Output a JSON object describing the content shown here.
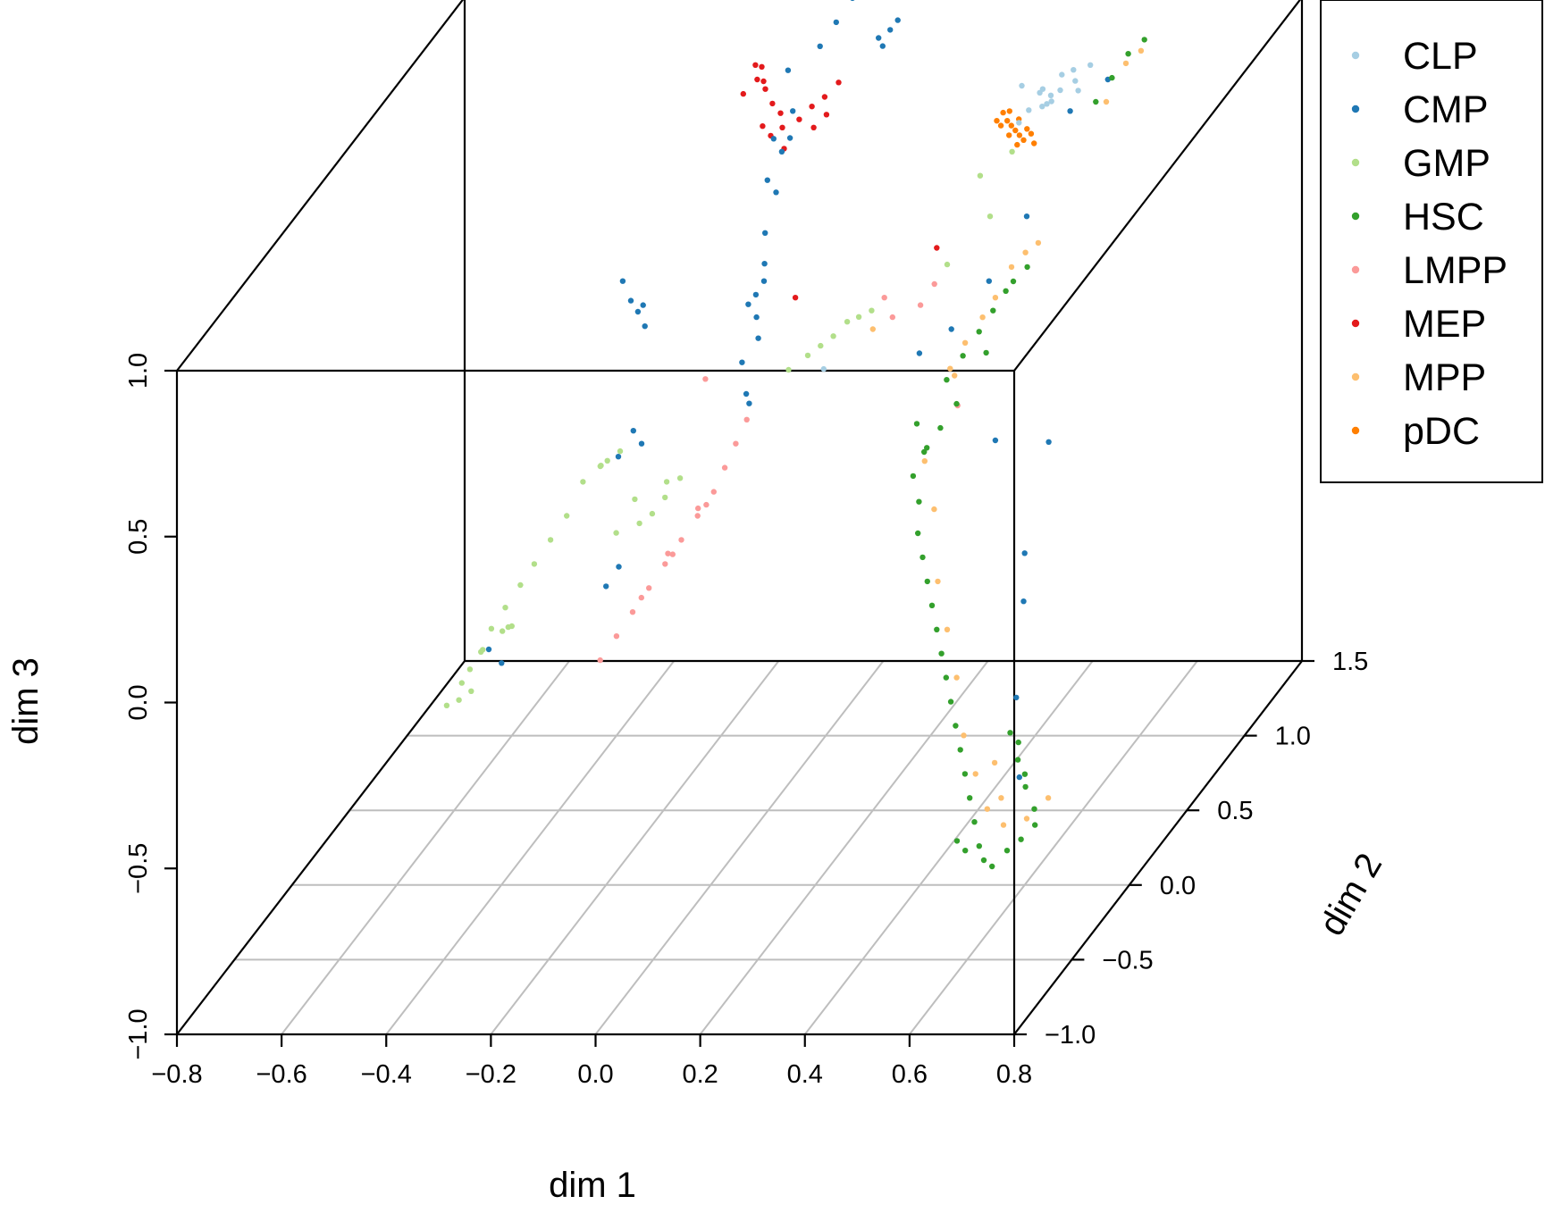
{
  "chart_data": {
    "type": "scatter",
    "title": "",
    "xlabel": "dim 1",
    "ylabel": "dim 2",
    "zlabel": "dim 3",
    "xlim": [
      -0.8,
      0.8
    ],
    "ylim": [
      -1.0,
      1.5
    ],
    "zlim": [
      -1.0,
      1.0
    ],
    "x_ticks": [
      "−0.8",
      "−0.6",
      "−0.4",
      "−0.2",
      "0.0",
      "0.2",
      "0.4",
      "0.6",
      "0.8"
    ],
    "y_ticks": [
      "−1.0",
      "−0.5",
      "0.0",
      "0.5",
      "1.0",
      "1.5"
    ],
    "z_ticks": [
      "−1.0",
      "−0.5",
      "0.0",
      "0.5",
      "1.0"
    ],
    "legend_position": "top-right",
    "series": [
      {
        "name": "CLP",
        "color": "#a6cee3",
        "points": [
          [
            0.43,
            0.93,
            0.98
          ],
          [
            0.45,
            0.91,
            0.97
          ],
          [
            0.47,
            0.9,
            0.99
          ],
          [
            0.44,
            0.88,
            0.95
          ],
          [
            0.49,
            0.94,
            1.0
          ],
          [
            0.42,
            0.95,
            0.96
          ],
          [
            0.41,
            0.9,
            0.93
          ],
          [
            0.46,
            0.96,
            1.01
          ],
          [
            0.5,
            0.92,
            0.98
          ],
          [
            0.48,
            0.97,
            1.02
          ],
          [
            0.4,
            0.86,
            0.91
          ],
          [
            0.44,
            0.92,
            0.94
          ],
          [
            0.46,
            0.87,
            0.97
          ],
          [
            0.39,
            0.93,
            0.99
          ],
          [
            0.51,
            0.98,
            1.03
          ],
          [
            0.15,
            0.3,
            0.42
          ]
        ]
      },
      {
        "name": "CMP",
        "color": "#1f78b4",
        "points": [
          [
            -0.05,
            0.9,
            1.05
          ],
          [
            0.0,
            0.95,
            1.1
          ],
          [
            0.02,
            1.0,
            1.15
          ],
          [
            0.04,
            1.05,
            1.2
          ],
          [
            -0.03,
            0.85,
            0.95
          ],
          [
            -0.04,
            0.8,
            0.85
          ],
          [
            -0.04,
            0.75,
            0.75
          ],
          [
            -0.05,
            0.7,
            0.65
          ],
          [
            -0.04,
            0.65,
            0.58
          ],
          [
            -0.03,
            0.6,
            0.55
          ],
          [
            -0.05,
            0.62,
            0.5
          ],
          [
            -0.04,
            0.58,
            0.45
          ],
          [
            -0.03,
            0.55,
            0.4
          ],
          [
            -0.05,
            0.5,
            0.35
          ],
          [
            -0.05,
            0.72,
            0.8
          ],
          [
            -0.02,
            0.78,
            0.9
          ],
          [
            -0.06,
            0.82,
            0.88
          ],
          [
            -0.06,
            0.6,
            0.48
          ],
          [
            0.09,
            1.05,
            1.08
          ],
          [
            0.11,
            1.06,
            1.1
          ],
          [
            0.12,
            1.08,
            1.12
          ],
          [
            0.1,
            1.04,
            1.06
          ],
          [
            -0.3,
            0.6,
            0.55
          ],
          [
            -0.28,
            0.58,
            0.5
          ],
          [
            -0.26,
            0.55,
            0.48
          ],
          [
            -0.24,
            0.52,
            0.45
          ],
          [
            -0.25,
            0.55,
            0.5
          ],
          [
            -0.22,
            0.4,
            0.15
          ],
          [
            -0.24,
            0.42,
            0.18
          ],
          [
            -0.26,
            0.38,
            0.12
          ],
          [
            -0.02,
            0.4,
            0.3
          ],
          [
            -0.01,
            0.38,
            0.28
          ],
          [
            -0.2,
            0.0,
            -0.1
          ],
          [
            -0.18,
            0.02,
            -0.05
          ],
          [
            -0.38,
            -0.2,
            -0.2
          ],
          [
            -0.36,
            -0.18,
            -0.25
          ],
          [
            0.5,
            0.85,
            0.95
          ],
          [
            0.55,
            0.95,
            1.0
          ],
          [
            0.45,
            0.7,
            0.7
          ],
          [
            0.4,
            0.6,
            0.55
          ],
          [
            0.35,
            0.5,
            0.45
          ],
          [
            0.3,
            0.45,
            0.4
          ],
          [
            0.6,
            0.0,
            0.0
          ],
          [
            0.65,
            -0.3,
            -0.3
          ],
          [
            0.62,
            -0.1,
            -0.1
          ],
          [
            0.7,
            -0.5,
            -0.45
          ],
          [
            0.58,
            0.3,
            0.2
          ],
          [
            0.5,
            0.2,
            0.25
          ]
        ]
      },
      {
        "name": "GMP",
        "color": "#b2df8a",
        "points": [
          [
            -0.25,
            0.35,
            0.15
          ],
          [
            -0.27,
            0.33,
            0.13
          ],
          [
            -0.29,
            0.36,
            0.1
          ],
          [
            -0.31,
            0.3,
            0.08
          ],
          [
            -0.28,
            0.32,
            0.12
          ],
          [
            -0.33,
            0.25,
            0.0
          ],
          [
            -0.35,
            0.2,
            -0.05
          ],
          [
            -0.37,
            0.15,
            -0.1
          ],
          [
            -0.39,
            0.12,
            -0.15
          ],
          [
            -0.41,
            0.08,
            -0.2
          ],
          [
            -0.43,
            0.05,
            -0.25
          ],
          [
            -0.44,
            0.02,
            -0.3
          ],
          [
            -0.46,
            0.0,
            -0.35
          ],
          [
            -0.45,
            0.05,
            -0.32
          ],
          [
            -0.42,
            0.1,
            -0.28
          ],
          [
            -0.4,
            0.06,
            -0.25
          ],
          [
            -0.38,
            0.0,
            -0.22
          ],
          [
            -0.48,
            0.02,
            -0.4
          ],
          [
            -0.47,
            -0.05,
            -0.42
          ],
          [
            -0.44,
            -0.08,
            -0.38
          ],
          [
            -0.5,
            -0.02,
            -0.45
          ],
          [
            -0.2,
            0.25,
            0.05
          ],
          [
            -0.18,
            0.2,
            0.0
          ],
          [
            -0.16,
            0.22,
            0.02
          ],
          [
            -0.22,
            0.18,
            -0.02
          ],
          [
            -0.14,
            0.24,
            0.06
          ],
          [
            -0.12,
            0.28,
            0.1
          ],
          [
            -0.15,
            0.3,
            0.08
          ],
          [
            0.1,
            0.5,
            0.4
          ],
          [
            0.12,
            0.52,
            0.42
          ],
          [
            0.14,
            0.55,
            0.45
          ],
          [
            0.08,
            0.48,
            0.38
          ],
          [
            0.05,
            0.45,
            0.35
          ],
          [
            0.16,
            0.56,
            0.46
          ],
          [
            0.18,
            0.58,
            0.47
          ],
          [
            0.35,
            0.75,
            0.8
          ],
          [
            0.4,
            0.8,
            0.85
          ],
          [
            0.38,
            0.7,
            0.7
          ],
          [
            0.32,
            0.6,
            0.6
          ]
        ]
      },
      {
        "name": "HSC",
        "color": "#33a02c",
        "points": [
          [
            0.52,
            0.2,
            0.7
          ],
          [
            0.5,
            0.18,
            0.65
          ],
          [
            0.48,
            0.15,
            0.6
          ],
          [
            0.46,
            0.1,
            0.55
          ],
          [
            0.44,
            0.05,
            0.5
          ],
          [
            0.5,
            0.12,
            0.55
          ],
          [
            0.53,
            0.22,
            0.72
          ],
          [
            0.55,
            0.25,
            0.75
          ],
          [
            0.47,
            0.0,
            0.45
          ],
          [
            0.45,
            -0.05,
            0.4
          ],
          [
            0.43,
            -0.1,
            0.35
          ],
          [
            0.42,
            -0.15,
            0.3
          ],
          [
            0.42,
            -0.1,
            0.2
          ],
          [
            0.44,
            -0.2,
            0.15
          ],
          [
            0.46,
            -0.25,
            0.1
          ],
          [
            0.48,
            -0.3,
            0.05
          ],
          [
            0.5,
            -0.35,
            0.0
          ],
          [
            0.52,
            -0.4,
            -0.05
          ],
          [
            0.54,
            -0.45,
            -0.1
          ],
          [
            0.56,
            -0.5,
            -0.15
          ],
          [
            0.58,
            -0.55,
            -0.2
          ],
          [
            0.6,
            -0.6,
            -0.25
          ],
          [
            0.62,
            -0.65,
            -0.3
          ],
          [
            0.64,
            -0.7,
            -0.35
          ],
          [
            0.66,
            -0.75,
            -0.4
          ],
          [
            0.68,
            -0.8,
            -0.45
          ],
          [
            0.7,
            -0.85,
            -0.5
          ],
          [
            0.72,
            -0.9,
            -0.52
          ],
          [
            0.74,
            -0.92,
            -0.53
          ],
          [
            0.76,
            -0.88,
            -0.5
          ],
          [
            0.78,
            -0.85,
            -0.48
          ],
          [
            0.8,
            -0.82,
            -0.45
          ],
          [
            0.79,
            -0.78,
            -0.42
          ],
          [
            0.76,
            -0.72,
            -0.38
          ],
          [
            0.73,
            -0.65,
            -0.33
          ],
          [
            0.7,
            -0.58,
            -0.28
          ],
          [
            0.72,
            -0.6,
            -0.3
          ],
          [
            0.75,
            -0.68,
            -0.36
          ],
          [
            0.35,
            0.2,
            0.3
          ],
          [
            0.38,
            0.15,
            0.25
          ],
          [
            0.6,
            0.9,
            1.1
          ],
          [
            0.62,
            0.95,
            1.12
          ],
          [
            0.58,
            0.85,
            1.05
          ],
          [
            0.56,
            0.8,
            1.0
          ],
          [
            0.68,
            -0.88,
            -0.5
          ],
          [
            0.66,
            -0.86,
            -0.48
          ]
        ]
      },
      {
        "name": "LMPP",
        "color": "#fb9a99",
        "points": [
          [
            -0.05,
            0.35,
            0.1
          ],
          [
            -0.06,
            0.3,
            0.05
          ],
          [
            -0.08,
            0.25,
            0.0
          ],
          [
            -0.1,
            0.2,
            -0.05
          ],
          [
            -0.12,
            0.15,
            -0.1
          ],
          [
            -0.14,
            0.1,
            -0.15
          ],
          [
            -0.16,
            0.05,
            -0.2
          ],
          [
            -0.18,
            0.0,
            -0.25
          ],
          [
            -0.2,
            -0.05,
            -0.3
          ],
          [
            -0.04,
            0.4,
            0.15
          ],
          [
            -0.07,
            0.28,
            0.02
          ],
          [
            -0.11,
            0.17,
            -0.08
          ],
          [
            -0.15,
            0.08,
            -0.17
          ],
          [
            -0.09,
            0.3,
            0.0
          ],
          [
            -0.13,
            0.22,
            -0.1
          ],
          [
            -0.03,
            0.45,
            0.2
          ],
          [
            0.2,
            0.6,
            0.5
          ],
          [
            0.22,
            0.58,
            0.45
          ],
          [
            0.28,
            0.55,
            0.5
          ],
          [
            0.3,
            0.58,
            0.55
          ],
          [
            -0.12,
            0.5,
            0.3
          ],
          [
            0.45,
            0.1,
            0.4
          ]
        ]
      },
      {
        "name": "MEP",
        "color": "#e31a1c",
        "points": [
          [
            -0.12,
            0.95,
            1.0
          ],
          [
            -0.1,
            0.93,
            0.98
          ],
          [
            -0.08,
            0.9,
            0.95
          ],
          [
            -0.06,
            0.88,
            0.93
          ],
          [
            -0.13,
            0.98,
            1.03
          ],
          [
            -0.11,
            0.96,
            0.99
          ],
          [
            -0.14,
            0.92,
            0.97
          ],
          [
            -0.09,
            0.86,
            0.9
          ],
          [
            -0.07,
            0.84,
            0.88
          ],
          [
            -0.05,
            0.85,
            0.9
          ],
          [
            0.0,
            0.88,
            0.95
          ],
          [
            0.02,
            0.9,
            0.97
          ],
          [
            0.04,
            0.93,
            1.0
          ],
          [
            -0.02,
            0.86,
            0.92
          ],
          [
            0.01,
            0.85,
            0.9
          ],
          [
            -0.04,
            0.82,
            0.85
          ],
          [
            0.03,
            0.87,
            0.93
          ],
          [
            -0.12,
            0.99,
            1.02
          ],
          [
            0.03,
            0.6,
            0.5
          ],
          [
            0.3,
            0.6,
            0.65
          ]
        ]
      },
      {
        "name": "MPP",
        "color": "#fdbf6f",
        "points": [
          [
            0.52,
            0.25,
            0.75
          ],
          [
            0.54,
            0.28,
            0.78
          ],
          [
            0.5,
            0.2,
            0.68
          ],
          [
            0.48,
            0.18,
            0.63
          ],
          [
            0.46,
            0.12,
            0.58
          ],
          [
            0.56,
            0.3,
            0.8
          ],
          [
            0.44,
            0.08,
            0.52
          ],
          [
            0.42,
            -0.05,
            0.3
          ],
          [
            0.46,
            -0.15,
            0.2
          ],
          [
            0.5,
            -0.3,
            0.05
          ],
          [
            0.54,
            -0.4,
            -0.05
          ],
          [
            0.58,
            -0.5,
            -0.15
          ],
          [
            0.62,
            -0.62,
            -0.27
          ],
          [
            0.66,
            -0.7,
            -0.35
          ],
          [
            0.7,
            -0.78,
            -0.42
          ],
          [
            0.74,
            -0.82,
            -0.45
          ],
          [
            0.78,
            -0.8,
            -0.44
          ],
          [
            0.81,
            -0.75,
            -0.4
          ],
          [
            0.6,
            0.88,
            1.08
          ],
          [
            0.62,
            0.92,
            1.1
          ],
          [
            0.58,
            0.8,
            1.0
          ],
          [
            0.4,
            0.3,
            0.4
          ],
          [
            0.2,
            0.5,
            0.45
          ],
          [
            0.72,
            -0.75,
            -0.4
          ],
          [
            0.69,
            -0.67,
            -0.33
          ]
        ]
      },
      {
        "name": "pDC",
        "color": "#ff7f00",
        "points": [
          [
            0.35,
            0.95,
            0.9
          ],
          [
            0.36,
            0.94,
            0.88
          ],
          [
            0.37,
            0.93,
            0.87
          ],
          [
            0.38,
            0.92,
            0.86
          ],
          [
            0.39,
            0.91,
            0.85
          ],
          [
            0.4,
            0.9,
            0.84
          ],
          [
            0.36,
            0.96,
            0.9
          ],
          [
            0.38,
            0.95,
            0.88
          ],
          [
            0.4,
            0.93,
            0.86
          ],
          [
            0.37,
            0.91,
            0.85
          ],
          [
            0.39,
            0.89,
            0.83
          ],
          [
            0.41,
            0.92,
            0.85
          ],
          [
            0.34,
            0.94,
            0.88
          ],
          [
            0.42,
            0.9,
            0.83
          ],
          [
            0.35,
            0.93,
            0.87
          ]
        ]
      }
    ]
  }
}
